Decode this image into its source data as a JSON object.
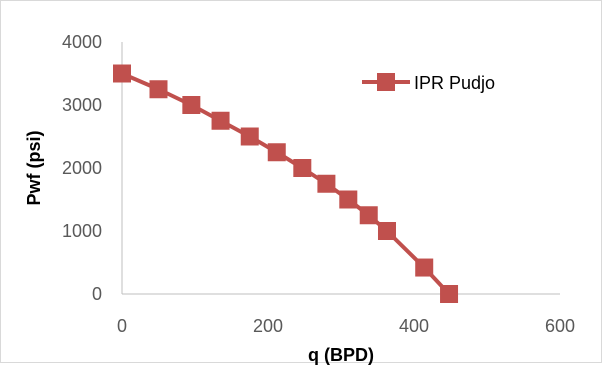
{
  "chart_data": {
    "type": "line",
    "title": "",
    "xlabel": "q (BPD)",
    "ylabel": "Pwf (psi)",
    "xlim": [
      0,
      600
    ],
    "ylim": [
      0,
      4000
    ],
    "x_ticks": [
      "0",
      "200",
      "400",
      "600"
    ],
    "y_ticks": [
      "0",
      "1000",
      "2000",
      "3000",
      "4000"
    ],
    "grid": false,
    "legend_position": "top-right",
    "series": [
      {
        "name": "IPR Pudjo",
        "color": "#c0504d",
        "marker": "square",
        "x": [
          0,
          50,
          95,
          135,
          175,
          212,
          247,
          280,
          310,
          338,
          363,
          414,
          448
        ],
        "y": [
          3500,
          3250,
          3000,
          2750,
          2500,
          2250,
          2000,
          1750,
          1500,
          1250,
          1000,
          420,
          0
        ]
      }
    ]
  }
}
